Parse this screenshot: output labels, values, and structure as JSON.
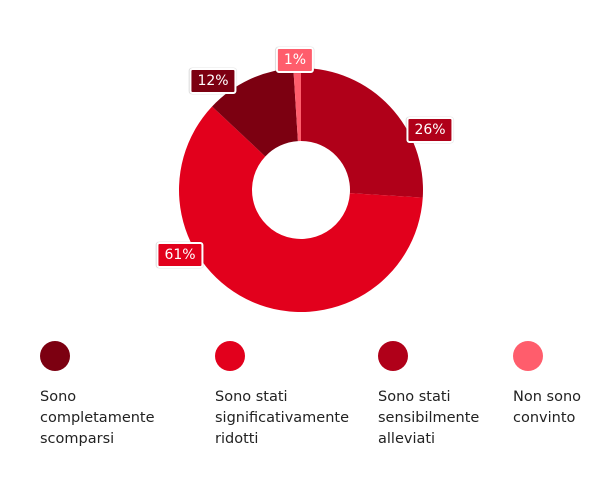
{
  "chart_data": {
    "type": "pie",
    "donut": true,
    "slices": [
      {
        "label": "Sono stati sensibilmente alleviati",
        "value": 26,
        "display": "26%",
        "color": "#b00019"
      },
      {
        "label": "Sono stati significativamente ridotti",
        "value": 61,
        "display": "61%",
        "color": "#e2001c"
      },
      {
        "label": "Sono completamente scomparsi",
        "value": 12,
        "display": "12%",
        "color": "#7c0011"
      },
      {
        "label": "Non sono convinto",
        "value": 1,
        "display": "1%",
        "color": "#ff5d6c"
      }
    ],
    "legend": [
      {
        "label": "Sono completamente scomparsi",
        "color": "#7c0011"
      },
      {
        "label": "Sono stati significativamente ridotti",
        "color": "#e2001c"
      },
      {
        "label": "Sono stati sensibilmente alleviati",
        "color": "#b00019"
      },
      {
        "label": "Non sono convinto",
        "color": "#ff5d6c"
      }
    ],
    "legend_position": "bottom"
  }
}
